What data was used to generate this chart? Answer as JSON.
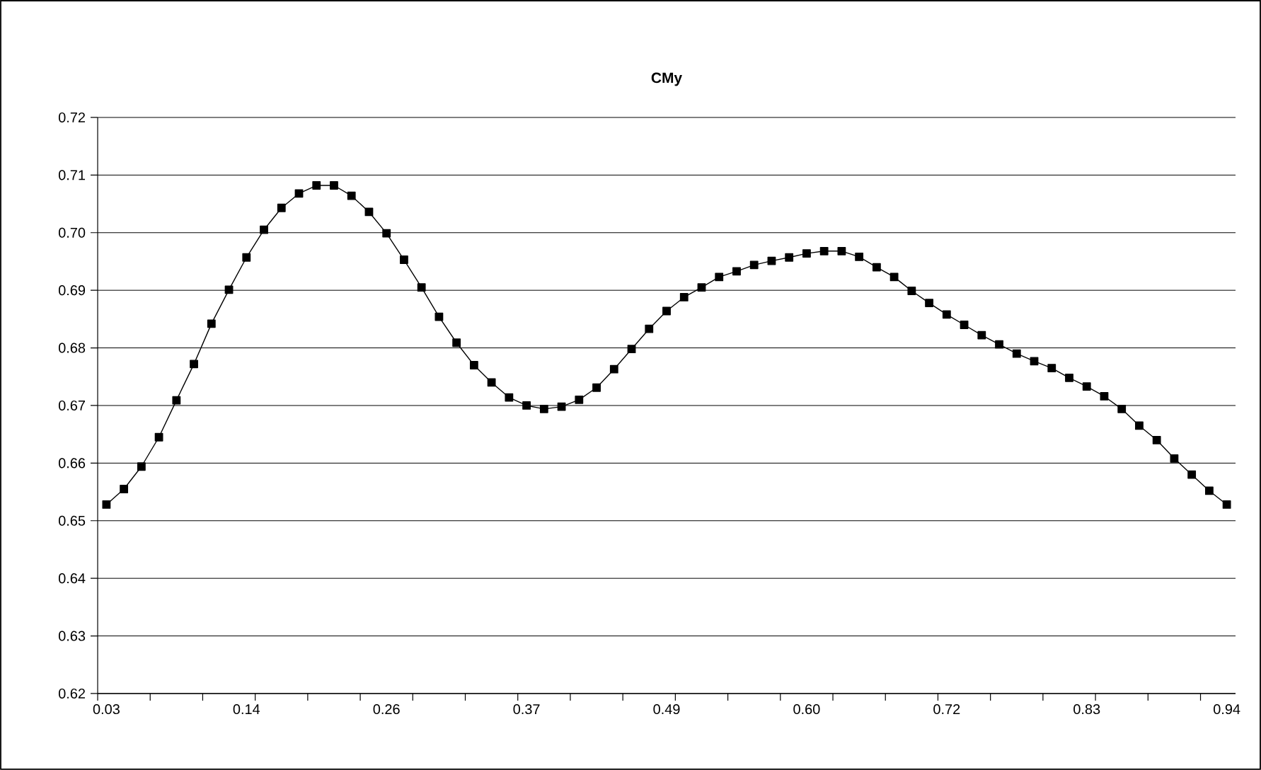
{
  "chart_data": {
    "type": "line",
    "title": "CMy",
    "categories": [
      "0.03",
      null,
      null,
      null,
      null,
      null,
      null,
      null,
      "0.14",
      null,
      null,
      null,
      null,
      null,
      null,
      null,
      "0.26",
      null,
      null,
      null,
      null,
      null,
      null,
      null,
      "0.37",
      null,
      null,
      null,
      null,
      null,
      null,
      null,
      "0.49",
      null,
      null,
      null,
      null,
      null,
      null,
      null,
      "0.60",
      null,
      null,
      null,
      null,
      null,
      null,
      null,
      "0.72",
      null,
      null,
      null,
      null,
      null,
      null,
      null,
      "0.83",
      null,
      null,
      null,
      null,
      null,
      null,
      null,
      "0.94"
    ],
    "values": [
      0.6528,
      0.6555,
      0.6594,
      0.6645,
      0.6709,
      0.6772,
      0.6842,
      0.6901,
      0.6957,
      0.7005,
      0.7043,
      0.7068,
      0.7082,
      0.7082,
      0.7064,
      0.7036,
      0.6999,
      0.6953,
      0.6905,
      0.6854,
      0.6809,
      0.677,
      0.674,
      0.6714,
      0.67,
      0.6694,
      0.6698,
      0.671,
      0.6731,
      0.6763,
      0.6798,
      0.6833,
      0.6864,
      0.6888,
      0.6905,
      0.6923,
      0.6933,
      0.6944,
      0.6951,
      0.6957,
      0.6964,
      0.6968,
      0.6968,
      0.6958,
      0.694,
      0.6923,
      0.6899,
      0.6878,
      0.6858,
      0.684,
      0.6822,
      0.6806,
      0.679,
      0.6777,
      0.6765,
      0.6748,
      0.6733,
      0.6716,
      0.6694,
      0.6665,
      0.664,
      0.6608,
      0.658,
      0.6552,
      0.6528
    ],
    "color": "#000000",
    "ylim": [
      0.62,
      0.72
    ],
    "yticks": [
      {
        "value": 0.62,
        "label": "0.62"
      },
      {
        "value": 0.63,
        "label": "0.63"
      },
      {
        "value": 0.64,
        "label": "0.64"
      },
      {
        "value": 0.65,
        "label": "0.65"
      },
      {
        "value": 0.66,
        "label": "0.66"
      },
      {
        "value": 0.67,
        "label": "0.67"
      },
      {
        "value": 0.68,
        "label": "0.68"
      },
      {
        "value": 0.69,
        "label": "0.69"
      },
      {
        "value": 0.7,
        "label": "0.70"
      },
      {
        "value": 0.71,
        "label": "0.71"
      },
      {
        "value": 0.72,
        "label": "0.72"
      }
    ],
    "grid": "y",
    "marker": "square",
    "line_style": "solid"
  }
}
